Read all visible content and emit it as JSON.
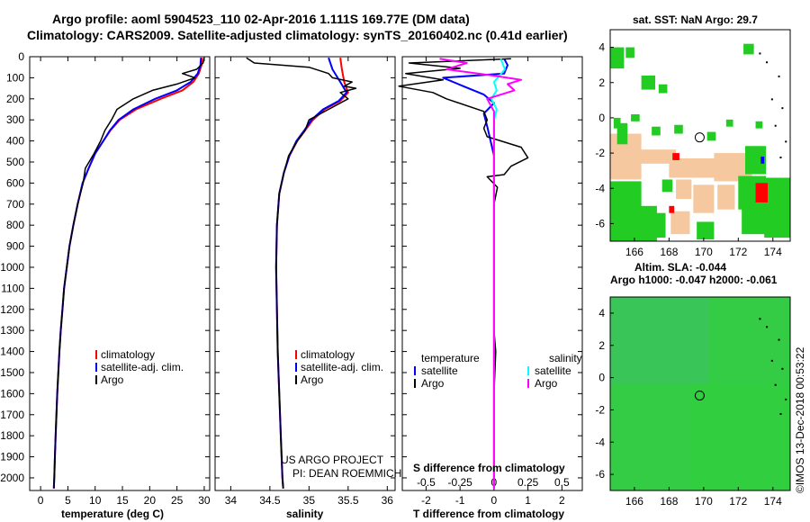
{
  "header": {
    "line1": "Argo profile: aoml 5904523_110 02-Apr-2016 1.111S 169.77E (DM data)",
    "line2": "Climatology: CARS2009. Satellite-adjusted climatology: synTS_20160402.nc (0.41d earlier)"
  },
  "credit": "US ARGO PROJECT",
  "credit_pi": "PI: DEAN ROEMMICH",
  "watermark": "©IMOS 13-Dec-2018 00:53:22",
  "colors": {
    "climatology": "#ff0000",
    "satellite": "#0000ff",
    "argo": "#000000",
    "sal_satellite": "#00ffff",
    "sal_argo": "#ff00ff",
    "land": "#ffffff",
    "sst_green": "#22cc22",
    "sst_tan": "#f5c8a0",
    "sla_green": "#33cc44"
  },
  "chart_data": [
    {
      "type": "line",
      "id": "temperature",
      "title": "",
      "xlabel": "temperature (deg C)",
      "ylabel": "",
      "xlim": [
        -2,
        31
      ],
      "ylim": [
        2060,
        0
      ],
      "xticks": [
        0,
        5,
        10,
        15,
        20,
        25,
        30
      ],
      "yticks": [
        0,
        100,
        200,
        300,
        400,
        500,
        600,
        700,
        800,
        900,
        1000,
        1100,
        1200,
        1300,
        1400,
        1500,
        1600,
        1700,
        1800,
        1900,
        2000
      ],
      "legend": [
        "climatology",
        "satellite-adj. clim.",
        "Argo"
      ],
      "series": [
        {
          "name": "climatology",
          "points": [
            [
              29.6,
              5
            ],
            [
              29.5,
              40
            ],
            [
              29.0,
              80
            ],
            [
              28.0,
              120
            ],
            [
              26.0,
              160
            ],
            [
              22.0,
              200
            ],
            [
              17.5,
              250
            ],
            [
              14.5,
              300
            ],
            [
              12.8,
              350
            ],
            [
              11.5,
              400
            ],
            [
              10.0,
              460
            ],
            [
              8.8,
              530
            ],
            [
              7.7,
              600
            ],
            [
              6.8,
              700
            ],
            [
              6.0,
              800
            ],
            [
              5.3,
              900
            ],
            [
              4.8,
              1000
            ],
            [
              4.3,
              1100
            ],
            [
              4.0,
              1200
            ],
            [
              3.7,
              1300
            ],
            [
              3.45,
              1400
            ],
            [
              3.25,
              1500
            ],
            [
              3.05,
              1600
            ],
            [
              2.9,
              1700
            ],
            [
              2.75,
              1800
            ],
            [
              2.62,
              1900
            ],
            [
              2.5,
              2000
            ],
            [
              2.42,
              2050
            ]
          ]
        },
        {
          "name": "satellite-adj. clim.",
          "points": [
            [
              29.4,
              5
            ],
            [
              29.3,
              40
            ],
            [
              28.8,
              80
            ],
            [
              27.5,
              120
            ],
            [
              25.0,
              160
            ],
            [
              21.0,
              200
            ],
            [
              17.0,
              250
            ],
            [
              14.3,
              300
            ],
            [
              12.7,
              350
            ],
            [
              11.5,
              400
            ],
            [
              10.0,
              460
            ],
            [
              8.8,
              530
            ],
            [
              7.7,
              600
            ],
            [
              6.8,
              700
            ],
            [
              6.0,
              800
            ],
            [
              5.3,
              900
            ],
            [
              4.8,
              1000
            ],
            [
              4.3,
              1100
            ],
            [
              4.0,
              1200
            ],
            [
              3.7,
              1300
            ],
            [
              3.45,
              1400
            ],
            [
              3.25,
              1500
            ],
            [
              3.05,
              1600
            ],
            [
              2.9,
              1700
            ],
            [
              2.75,
              1800
            ],
            [
              2.62,
              1900
            ],
            [
              2.5,
              2000
            ],
            [
              2.42,
              2050
            ]
          ]
        },
        {
          "name": "Argo",
          "points": [
            [
              30.0,
              5
            ],
            [
              29.8,
              30
            ],
            [
              28.6,
              60
            ],
            [
              26.0,
              80
            ],
            [
              28.3,
              100
            ],
            [
              25.0,
              130
            ],
            [
              20.5,
              160
            ],
            [
              17.0,
              200
            ],
            [
              14.0,
              250
            ],
            [
              13.0,
              300
            ],
            [
              11.8,
              350
            ],
            [
              11.0,
              400
            ],
            [
              9.8,
              460
            ],
            [
              8.2,
              530
            ],
            [
              7.8,
              600
            ],
            [
              6.8,
              700
            ],
            [
              6.0,
              800
            ],
            [
              5.3,
              900
            ],
            [
              4.8,
              1000
            ],
            [
              4.3,
              1100
            ],
            [
              4.0,
              1200
            ],
            [
              3.7,
              1300
            ],
            [
              3.45,
              1400
            ],
            [
              3.25,
              1500
            ],
            [
              3.05,
              1600
            ],
            [
              2.9,
              1700
            ],
            [
              2.75,
              1800
            ],
            [
              2.62,
              1900
            ],
            [
              2.5,
              2000
            ],
            [
              2.42,
              2050
            ]
          ]
        }
      ]
    },
    {
      "type": "line",
      "id": "salinity",
      "xlabel": "salinity",
      "xlim": [
        33.8,
        36.1
      ],
      "ylim": [
        2060,
        0
      ],
      "xticks": [
        34,
        34.5,
        35,
        35.5,
        36
      ],
      "xticklabels": [
        "34",
        "34.5",
        "35",
        "35.5",
        "36"
      ],
      "legend": [
        "climatology",
        "satellite-adj. clim.",
        "Argo"
      ],
      "series": [
        {
          "name": "climatology",
          "points": [
            [
              35.4,
              5
            ],
            [
              35.42,
              60
            ],
            [
              35.45,
              120
            ],
            [
              35.5,
              170
            ],
            [
              35.4,
              210
            ],
            [
              35.2,
              250
            ],
            [
              35.05,
              300
            ],
            [
              34.95,
              350
            ],
            [
              34.85,
              400
            ],
            [
              34.75,
              470
            ],
            [
              34.68,
              550
            ],
            [
              34.62,
              650
            ],
            [
              34.59,
              800
            ],
            [
              34.58,
              1000
            ],
            [
              34.59,
              1200
            ],
            [
              34.6,
              1400
            ],
            [
              34.62,
              1600
            ],
            [
              34.64,
              1800
            ],
            [
              34.66,
              2000
            ],
            [
              34.67,
              2050
            ]
          ]
        },
        {
          "name": "satellite-adj. clim.",
          "points": [
            [
              35.25,
              5
            ],
            [
              35.3,
              60
            ],
            [
              35.4,
              120
            ],
            [
              35.48,
              170
            ],
            [
              35.38,
              210
            ],
            [
              35.18,
              250
            ],
            [
              35.03,
              300
            ],
            [
              34.94,
              350
            ],
            [
              34.84,
              400
            ],
            [
              34.75,
              470
            ],
            [
              34.68,
              550
            ],
            [
              34.62,
              650
            ],
            [
              34.59,
              800
            ],
            [
              34.58,
              1000
            ],
            [
              34.59,
              1200
            ],
            [
              34.6,
              1400
            ],
            [
              34.62,
              1600
            ],
            [
              34.64,
              1800
            ],
            [
              34.66,
              2000
            ],
            [
              34.67,
              2050
            ]
          ]
        },
        {
          "name": "Argo",
          "points": [
            [
              34.2,
              5
            ],
            [
              34.3,
              30
            ],
            [
              35.0,
              50
            ],
            [
              35.25,
              80
            ],
            [
              35.3,
              100
            ],
            [
              35.55,
              120
            ],
            [
              35.45,
              140
            ],
            [
              35.6,
              150
            ],
            [
              35.4,
              170
            ],
            [
              35.5,
              200
            ],
            [
              35.25,
              250
            ],
            [
              35.0,
              300
            ],
            [
              34.95,
              350
            ],
            [
              34.85,
              400
            ],
            [
              34.74,
              470
            ],
            [
              34.68,
              550
            ],
            [
              34.62,
              650
            ],
            [
              34.59,
              800
            ],
            [
              34.58,
              1000
            ],
            [
              34.59,
              1200
            ],
            [
              34.6,
              1400
            ],
            [
              34.62,
              1600
            ],
            [
              34.64,
              1800
            ],
            [
              34.66,
              2000
            ],
            [
              34.67,
              2050
            ]
          ]
        }
      ]
    },
    {
      "type": "line",
      "id": "differences",
      "xlabel": "T difference from climatology",
      "xlabel2": "S difference from climatology",
      "xlim": [
        -2.7,
        2.6
      ],
      "ylim": [
        2060,
        0
      ],
      "xticks": [
        -2,
        -1,
        0,
        1,
        2
      ],
      "x2ticks": [
        -0.5,
        -0.25,
        0,
        0.25,
        0.5
      ],
      "x2ticklabels": [
        "-0.5",
        "-0.25",
        "0",
        "0.25",
        "0.5"
      ],
      "legend_t_heading": "temperature",
      "legend_s_heading": "salinity",
      "legend_t": [
        "satellite",
        "Argo"
      ],
      "legend_s": [
        "satellite",
        "Argo"
      ],
      "series": [
        {
          "name": "T satellite",
          "points": [
            [
              0.3,
              10
            ],
            [
              0.4,
              40
            ],
            [
              0.3,
              80
            ],
            [
              -1.5,
              100
            ],
            [
              -0.9,
              140
            ],
            [
              -0.3,
              180
            ],
            [
              0.0,
              220
            ],
            [
              -0.3,
              270
            ],
            [
              -0.2,
              330
            ],
            [
              -0.1,
              400
            ],
            [
              0.0,
              470
            ],
            [
              0.0,
              600
            ],
            [
              0.0,
              800
            ],
            [
              0.0,
              1000
            ],
            [
              0.0,
              1500
            ],
            [
              0.0,
              2050
            ]
          ]
        },
        {
          "name": "T Argo",
          "points": [
            [
              0.5,
              10
            ],
            [
              -2.5,
              30
            ],
            [
              -1.0,
              55
            ],
            [
              -2.6,
              80
            ],
            [
              -1.5,
              110
            ],
            [
              -2.8,
              140
            ],
            [
              -1.8,
              170
            ],
            [
              -1.4,
              200
            ],
            [
              -0.3,
              260
            ],
            [
              -0.2,
              300
            ],
            [
              -0.3,
              340
            ],
            [
              -0.2,
              380
            ],
            [
              0.8,
              430
            ],
            [
              1.0,
              480
            ],
            [
              0.5,
              520
            ],
            [
              0.3,
              560
            ],
            [
              -0.2,
              570
            ],
            [
              0.1,
              620
            ],
            [
              0.0,
              700
            ],
            [
              0.0,
              900
            ],
            [
              0.0,
              1100
            ],
            [
              0.0,
              1300
            ],
            [
              0.05,
              1400
            ],
            [
              0.0,
              1600
            ],
            [
              0.0,
              1800
            ],
            [
              0.0,
              2050
            ]
          ]
        },
        {
          "name": "S satellite",
          "points": [
            [
              0.05,
              10
            ],
            [
              0.08,
              60
            ],
            [
              0.0,
              120
            ],
            [
              0.02,
              160
            ],
            [
              -0.02,
              200
            ],
            [
              0.02,
              250
            ],
            [
              0.0,
              300
            ],
            [
              0.0,
              500
            ],
            [
              0.0,
              1000
            ],
            [
              0.0,
              1500
            ],
            [
              0.0,
              2050
            ]
          ]
        },
        {
          "name": "S Argo",
          "points": [
            [
              -0.4,
              10
            ],
            [
              -0.2,
              30
            ],
            [
              -0.35,
              60
            ],
            [
              0.0,
              90
            ],
            [
              0.2,
              110
            ],
            [
              0.1,
              130
            ],
            [
              0.15,
              160
            ],
            [
              -0.05,
              200
            ],
            [
              0.0,
              260
            ],
            [
              0.0,
              400
            ],
            [
              0.0,
              1000
            ],
            [
              0.0,
              1200
            ],
            [
              0.0,
              1600
            ],
            [
              0.0,
              2050
            ]
          ]
        }
      ]
    },
    {
      "type": "heatmap",
      "id": "sst-map",
      "title": "sat. SST: NaN Argo: 29.7",
      "xlim": [
        164.6,
        175
      ],
      "ylim": [
        -7,
        5
      ],
      "xticks": [
        166,
        168,
        170,
        172,
        174
      ],
      "yticks": [
        -6,
        -4,
        -2,
        0,
        2,
        4
      ],
      "marker": [
        169.77,
        -1.111
      ]
    },
    {
      "type": "heatmap",
      "id": "sla-map",
      "title": "Altim. SLA: -0.044",
      "subtitle": "Argo h1000: -0.047 h2000: -0.061",
      "xlim": [
        164.6,
        175
      ],
      "ylim": [
        -7,
        5
      ],
      "xticks": [
        166,
        168,
        170,
        172,
        174
      ],
      "yticks": [
        -6,
        -4,
        -2,
        0,
        2,
        4
      ],
      "marker": [
        169.77,
        -1.111
      ]
    }
  ]
}
